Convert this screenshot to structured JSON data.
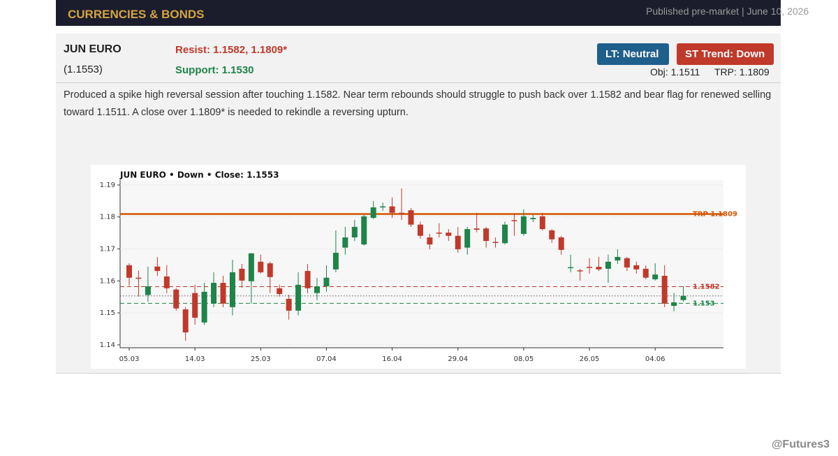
{
  "header": {
    "title": "CURRENCIES & BONDS",
    "published": "Published pre-market  |  June 10, 2026"
  },
  "card": {
    "name": "JUN EURO",
    "close": "(1.1553)",
    "resist": "Resist: 1.1582, 1.1809*",
    "support": "Support: 1.1530",
    "lt": "LT: Neutral",
    "st": "ST Trend: Down",
    "obj": "Obj: 1.1511",
    "trp": "TRP: 1.1809",
    "commentary": "Produced a spike high reversal session after touching 1.1582. Near term rebounds should struggle to push back over 1.1582 and bear flag for renewed selling toward 1.1511. A close over 1.1809* is needed to rekindle a reversing upturn."
  },
  "chart_data": {
    "type": "candlestick",
    "title": "JUN EURO  •  Down  •  Close: 1.1553",
    "categories": [
      "05.03",
      null,
      null,
      null,
      null,
      null,
      null,
      "14.03",
      null,
      null,
      null,
      null,
      null,
      null,
      "25.03",
      null,
      null,
      null,
      null,
      null,
      null,
      "07.04",
      null,
      null,
      null,
      null,
      null,
      null,
      "16.04",
      null,
      null,
      null,
      null,
      null,
      null,
      "29.04",
      null,
      null,
      null,
      null,
      null,
      null,
      "08.05",
      null,
      null,
      null,
      null,
      null,
      null,
      "26.05",
      null,
      null,
      null,
      null,
      null,
      null,
      "04.06",
      null,
      null,
      null
    ],
    "open": [
      1.1649,
      1.161,
      1.1556,
      1.1645,
      1.1614,
      1.1573,
      1.1511,
      1.1562,
      1.147,
      1.1529,
      1.1594,
      1.1518,
      1.1638,
      1.1599,
      1.166,
      1.1655,
      1.1577,
      1.1544,
      1.1507,
      1.1631,
      1.1562,
      1.1583,
      1.1636,
      1.1704,
      1.1736,
      1.1714,
      1.1797,
      1.183,
      1.1833,
      1.1813,
      1.1821,
      1.1776,
      1.1736,
      1.1751,
      1.1751,
      1.1741,
      1.1704,
      1.1764,
      1.1764,
      1.1722,
      1.1718,
      1.179,
      1.1747,
      1.1793,
      1.1802,
      1.1758,
      1.1736,
      1.1641,
      1.1633,
      1.1644,
      1.1644,
      1.1638,
      1.1664,
      1.1671,
      1.1649,
      1.1638,
      1.1605,
      1.1616,
      1.1522,
      1.154
    ],
    "high": [
      1.1655,
      1.1632,
      1.1645,
      1.1675,
      1.1649,
      1.1577,
      1.1518,
      1.1588,
      1.1594,
      1.1627,
      1.1616,
      1.1666,
      1.1653,
      1.1688,
      1.1682,
      1.166,
      1.1588,
      1.1557,
      1.1627,
      1.1653,
      1.161,
      1.1649,
      1.1758,
      1.1769,
      1.1791,
      1.1806,
      1.185,
      1.1845,
      1.1861,
      1.1889,
      1.1828,
      1.1785,
      1.1747,
      1.178,
      1.1762,
      1.1769,
      1.1769,
      1.1813,
      1.1769,
      1.1736,
      1.1785,
      1.181,
      1.1824,
      1.1806,
      1.1813,
      1.1762,
      1.1741,
      1.1682,
      1.1638,
      1.1671,
      1.1675,
      1.1682,
      1.1699,
      1.1675,
      1.166,
      1.1649,
      1.1655,
      1.1649,
      1.1562,
      1.1583
    ],
    "low": [
      1.1585,
      1.1551,
      1.1535,
      1.1616,
      1.1562,
      1.1507,
      1.1413,
      1.1463,
      1.1463,
      1.1518,
      1.1518,
      1.1492,
      1.1579,
      1.1529,
      1.1623,
      1.1562,
      1.1551,
      1.1479,
      1.1492,
      1.1562,
      1.154,
      1.1566,
      1.1627,
      1.1682,
      1.1725,
      1.171,
      1.1793,
      1.1819,
      1.1797,
      1.179,
      1.1769,
      1.1732,
      1.1699,
      1.1736,
      1.1725,
      1.1688,
      1.1682,
      1.1752,
      1.1704,
      1.1704,
      1.1714,
      1.1741,
      1.1741,
      1.1784,
      1.1758,
      1.1719,
      1.1682,
      1.1627,
      1.1601,
      1.1623,
      1.1631,
      1.1594,
      1.1653,
      1.1631,
      1.1623,
      1.1605,
      1.1601,
      1.1518,
      1.1505,
      1.1535
    ],
    "close": [
      1.161,
      1.1609,
      1.1583,
      1.1631,
      1.1577,
      1.1514,
      1.1439,
      1.1485,
      1.1566,
      1.1594,
      1.1529,
      1.1627,
      1.1601,
      1.1686,
      1.1627,
      1.1612,
      1.1559,
      1.1507,
      1.1588,
      1.1577,
      1.1583,
      1.161,
      1.1688,
      1.1736,
      1.1769,
      1.1802,
      1.183,
      1.1833,
      1.1813,
      1.181,
      1.1776,
      1.1741,
      1.1714,
      1.1748,
      1.1741,
      1.1699,
      1.1762,
      1.176,
      1.1725,
      1.172,
      1.1776,
      1.1788,
      1.1802,
      1.1797,
      1.1762,
      1.173,
      1.1697,
      1.1643,
      1.1631,
      1.1642,
      1.1636,
      1.166,
      1.1675,
      1.1642,
      1.1636,
      1.161,
      1.162,
      1.1529,
      1.1533,
      1.1553
    ],
    "up_color": "#1e8449",
    "down_color": "#c0392b",
    "ylim": [
      1.1391,
      1.1915
    ],
    "yticks": [
      1.14,
      1.15,
      1.16,
      1.17,
      1.18,
      1.19
    ],
    "grid": true,
    "hlines": [
      {
        "value": 1.1809,
        "label": "TRP 1.1809",
        "color": "#d35400",
        "style": "solid"
      },
      {
        "value": 1.1582,
        "label": "1.1582",
        "color": "#c0392b",
        "style": "dashed"
      },
      {
        "value": 1.153,
        "label": "1.153",
        "color": "#1e8449",
        "style": "dashed"
      },
      {
        "value": 1.1553,
        "color": "#555555",
        "style": "dotted"
      }
    ]
  },
  "footer": {
    "handle": "@Futures3"
  }
}
